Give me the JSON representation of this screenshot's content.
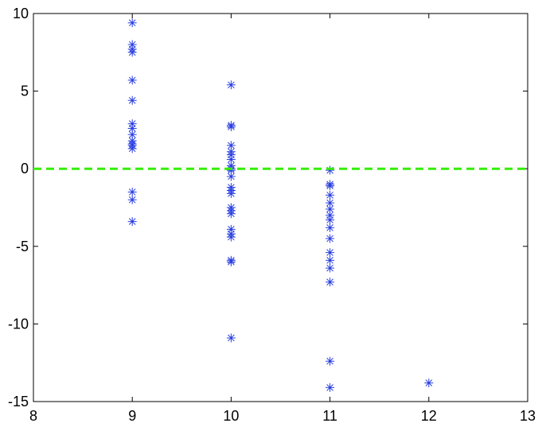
{
  "chart_data": {
    "type": "scatter",
    "xlim": [
      8,
      13
    ],
    "xticks": [
      8,
      9,
      10,
      11,
      12,
      13
    ],
    "ylim": [
      -15,
      10
    ],
    "yticks": [
      -15,
      -10,
      -5,
      0,
      5,
      10
    ],
    "series": [
      {
        "type": "scatter",
        "marker": "asterisk",
        "color": "#2a3fe0",
        "x": [
          9,
          9,
          9,
          9,
          9,
          9,
          9,
          9,
          9,
          9,
          9,
          9,
          9,
          9,
          9,
          9,
          10,
          10,
          10,
          10,
          10,
          10,
          10,
          10,
          10,
          10,
          10,
          10,
          10,
          10,
          10,
          10,
          10,
          10,
          10,
          10,
          10,
          10,
          10,
          11,
          11,
          11,
          11,
          11,
          11,
          11,
          11,
          11,
          11,
          11,
          11,
          11,
          11,
          11,
          11,
          12
        ],
        "values": [
          9.4,
          8.0,
          7.7,
          7.5,
          5.7,
          4.4,
          2.9,
          2.6,
          2.2,
          1.8,
          1.6,
          1.5,
          1.3,
          -1.5,
          -2.0,
          -3.4,
          5.4,
          2.8,
          2.7,
          1.5,
          1.1,
          0.9,
          0.6,
          0.2,
          0.0,
          -0.1,
          -0.5,
          -1.2,
          -1.4,
          -1.6,
          -2.5,
          -2.7,
          -2.9,
          -3.9,
          -4.2,
          -4.4,
          -5.9,
          -6.0,
          -10.9,
          -0.1,
          -1.0,
          -1.1,
          -1.7,
          -2.2,
          -2.6,
          -3.0,
          -3.3,
          -3.8,
          -4.5,
          -5.4,
          -5.9,
          -6.4,
          -7.3,
          -12.4,
          -14.1,
          -13.8
        ]
      },
      {
        "type": "line",
        "style": "dashed",
        "color": "#33ee00",
        "x": [
          8,
          13
        ],
        "values": [
          0,
          0
        ]
      }
    ]
  }
}
